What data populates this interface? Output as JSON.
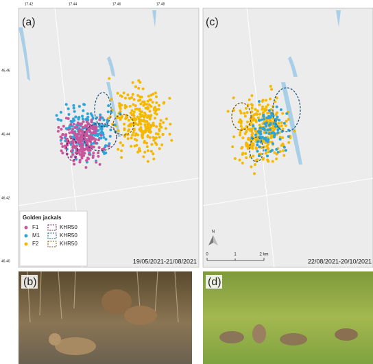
{
  "axes": {
    "top_ticks": [
      "17.42",
      "17.44",
      "17.46",
      "17.48"
    ],
    "left_ticks": [
      "46.46",
      "46.44",
      "46.42",
      "46.40"
    ]
  },
  "panels": [
    {
      "label": "(a)",
      "date_range": "19/05/2021-21/08/2021"
    },
    {
      "label": "(c)",
      "date_range": "22/08/2021-20/10/2021"
    },
    {
      "label": "(b)"
    },
    {
      "label": "(d)"
    }
  ],
  "legend": {
    "title": "Golden jackals",
    "points": [
      "F1",
      "M1",
      "F2"
    ],
    "ranges": [
      "KHR50",
      "KHR50",
      "KHR50"
    ]
  },
  "scale_bar": {
    "north": "N",
    "labels": [
      "0",
      "1",
      "2 km"
    ]
  }
}
